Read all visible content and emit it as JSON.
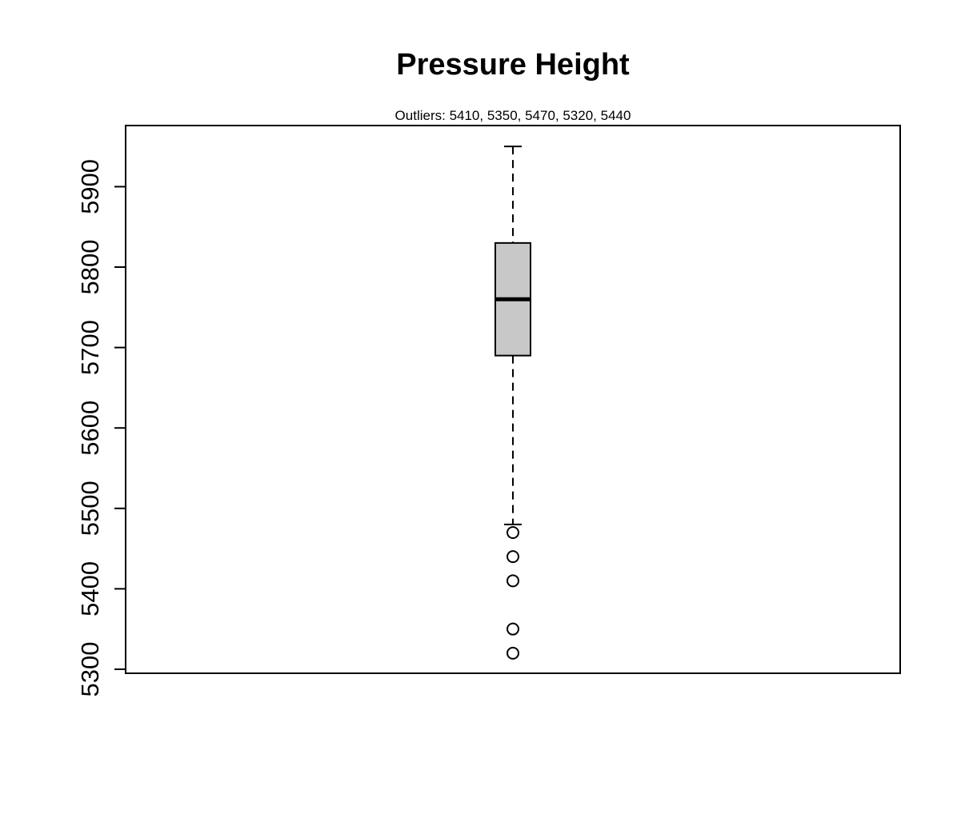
{
  "chart_data": {
    "type": "boxplot",
    "title": "Pressure Height",
    "subtitle_prefix": "Outliers:",
    "subtitle": "Outliers:  5410, 5350, 5470, 5320, 5440",
    "ylim": [
      5295,
      5976
    ],
    "yticks": [
      5300,
      5400,
      5500,
      5600,
      5700,
      5800,
      5900
    ],
    "ytick_labels": [
      "5300",
      "5400",
      "5500",
      "5600",
      "5700",
      "5800",
      "5900"
    ],
    "box": {
      "whisker_low": 5480,
      "q1": 5690,
      "median": 5760,
      "q3": 5830,
      "whisker_high": 5950,
      "fill": "#c8c8c8"
    },
    "outliers": [
      5410,
      5350,
      5470,
      5320,
      5440
    ],
    "grid": false,
    "legend": "none"
  }
}
